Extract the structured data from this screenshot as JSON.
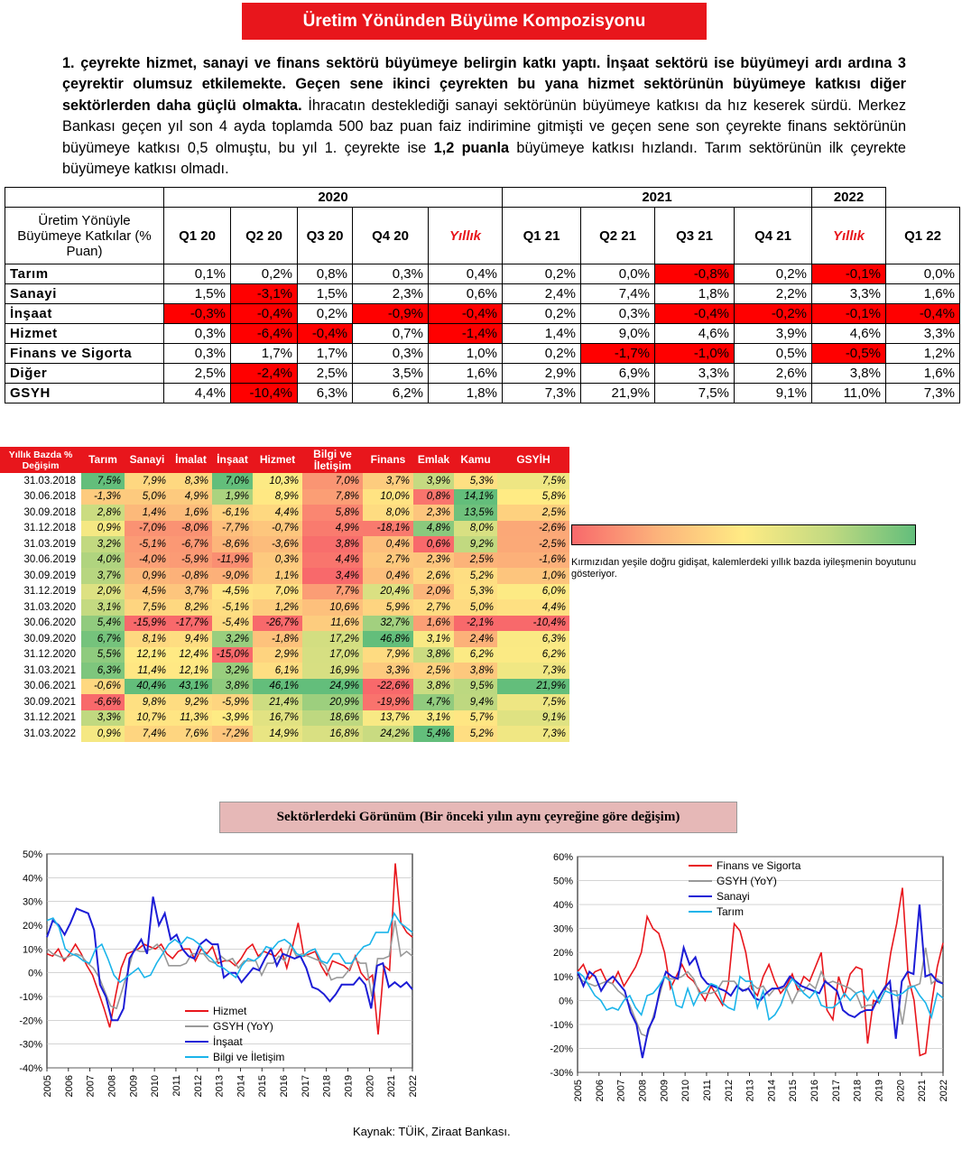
{
  "title": "Üretim Yönünden Büyüme Kompozisyonu",
  "paragraph": {
    "bold_1": "1. çeyrekte hizmet, sanayi ve finans sektörü büyümeye belirgin katkı yaptı. İnşaat sektörü ise büyümeyi ardı ardına 3 çeyrektir olumsuz etkilemekte. Geçen sene ikinci çeyrekten bu yana hizmet sektörünün büyümeye katkısı diğer sektörlerden daha güçlü olmakta.",
    "normal_1": " İhracatın desteklediği sanayi sektörünün büyümeye katkısı da hız keserek sürdü. Merkez Bankası geçen yıl son 4 ayda toplamda 500 baz puan faiz indirimine gitmişti ve geçen sene son çeyrekte finans sektörünün büyümeye katkısı 0,5 olmuştu, bu yıl 1. çeyrekte ise ",
    "bold_2": "1,2 puanla",
    "normal_2": " büyümeye katkısı hızlandı. Tarım sektörünün ilk çeyrekte büyümeye katkısı olmadı."
  },
  "contrib_table": {
    "years": [
      "2020",
      "2021",
      "2022"
    ],
    "row_header": "Üretim Yönüyle Büyümeye Katkılar (% Puan)",
    "columns": [
      "Q1 20",
      "Q2 20",
      "Q3 20",
      "Q4 20",
      "Yıllık",
      "Q1 21",
      "Q2 21",
      "Q3 21",
      "Q4 21",
      "Yıllık",
      "Q1 22"
    ],
    "rows": [
      {
        "label": "Tarım",
        "values": [
          "0,1%",
          "0,2%",
          "0,8%",
          "0,3%",
          "0,4%",
          "0,2%",
          "0,0%",
          "-0,8%",
          "0,2%",
          "-0,1%",
          "0,0%"
        ]
      },
      {
        "label": "Sanayi",
        "values": [
          "1,5%",
          "-3,1%",
          "1,5%",
          "2,3%",
          "0,6%",
          "2,4%",
          "7,4%",
          "1,8%",
          "2,2%",
          "3,3%",
          "1,6%"
        ]
      },
      {
        "label": "İnşaat",
        "values": [
          "-0,3%",
          "-0,4%",
          "0,2%",
          "-0,9%",
          "-0,4%",
          "0,2%",
          "0,3%",
          "-0,4%",
          "-0,2%",
          "-0,1%",
          "-0,4%"
        ]
      },
      {
        "label": "Hizmet",
        "values": [
          "0,3%",
          "-6,4%",
          "-0,4%",
          "0,7%",
          "-1,4%",
          "1,4%",
          "9,0%",
          "4,6%",
          "3,9%",
          "4,6%",
          "3,3%"
        ]
      },
      {
        "label": "Finans ve Sigorta",
        "values": [
          "0,3%",
          "1,7%",
          "1,7%",
          "0,3%",
          "1,0%",
          "0,2%",
          "-1,7%",
          "-1,0%",
          "0,5%",
          "-0,5%",
          "1,2%"
        ]
      },
      {
        "label": "Diğer",
        "values": [
          "2,5%",
          "-2,4%",
          "2,5%",
          "3,5%",
          "1,6%",
          "2,9%",
          "6,9%",
          "3,3%",
          "2,6%",
          "3,8%",
          "1,6%"
        ]
      },
      {
        "label": "GSYH",
        "values": [
          "4,4%",
          "-10,4%",
          "6,3%",
          "6,2%",
          "1,8%",
          "7,3%",
          "21,9%",
          "7,5%",
          "9,1%",
          "11,0%",
          "7,3%"
        ]
      }
    ]
  },
  "heatmap": {
    "corner": "Yıllık Bazda % Değişim",
    "columns": [
      "Tarım",
      "Sanayi",
      "İmalat",
      "İnşaat",
      "Hizmet",
      "Bilgi ve İletişim",
      "Finans",
      "Emlak",
      "Kamu",
      "GSYİH"
    ],
    "rows": [
      {
        "date": "31.03.2018",
        "values": [
          "7,5%",
          "7,9%",
          "8,3%",
          "7,0%",
          "10,3%",
          "7,0%",
          "3,7%",
          "3,9%",
          "5,3%",
          "7,5%"
        ]
      },
      {
        "date": "30.06.2018",
        "values": [
          "-1,3%",
          "5,0%",
          "4,9%",
          "1,9%",
          "8,9%",
          "7,8%",
          "10,0%",
          "0,8%",
          "14,1%",
          "5,8%"
        ]
      },
      {
        "date": "30.09.2018",
        "values": [
          "2,8%",
          "1,4%",
          "1,6%",
          "-6,1%",
          "4,4%",
          "5,8%",
          "8,0%",
          "2,3%",
          "13,5%",
          "2,5%"
        ]
      },
      {
        "date": "31.12.2018",
        "values": [
          "0,9%",
          "-7,0%",
          "-8,0%",
          "-7,7%",
          "-0,7%",
          "4,9%",
          "-18,1%",
          "4,8%",
          "8,0%",
          "-2,6%"
        ]
      },
      {
        "date": "31.03.2019",
        "values": [
          "3,2%",
          "-5,1%",
          "-6,7%",
          "-8,6%",
          "-3,6%",
          "3,8%",
          "0,4%",
          "0,6%",
          "9,2%",
          "-2,5%"
        ]
      },
      {
        "date": "30.06.2019",
        "values": [
          "4,0%",
          "-4,0%",
          "-5,9%",
          "-11,9%",
          "0,3%",
          "4,4%",
          "2,7%",
          "2,3%",
          "2,5%",
          "-1,6%"
        ]
      },
      {
        "date": "30.09.2019",
        "values": [
          "3,7%",
          "0,9%",
          "-0,8%",
          "-9,0%",
          "1,1%",
          "3,4%",
          "0,4%",
          "2,6%",
          "5,2%",
          "1,0%"
        ]
      },
      {
        "date": "31.12.2019",
        "values": [
          "2,0%",
          "4,5%",
          "3,7%",
          "-4,5%",
          "7,0%",
          "7,7%",
          "20,4%",
          "2,0%",
          "5,3%",
          "6,0%"
        ]
      },
      {
        "date": "31.03.2020",
        "values": [
          "3,1%",
          "7,5%",
          "8,2%",
          "-5,1%",
          "1,2%",
          "10,6%",
          "5,9%",
          "2,7%",
          "5,0%",
          "4,4%"
        ]
      },
      {
        "date": "30.06.2020",
        "values": [
          "5,4%",
          "-15,9%",
          "-17,7%",
          "-5,4%",
          "-26,7%",
          "11,6%",
          "32,7%",
          "1,6%",
          "-2,1%",
          "-10,4%"
        ]
      },
      {
        "date": "30.09.2020",
        "values": [
          "6,7%",
          "8,1%",
          "9,4%",
          "3,2%",
          "-1,8%",
          "17,2%",
          "46,8%",
          "3,1%",
          "2,4%",
          "6,3%"
        ]
      },
      {
        "date": "31.12.2020",
        "values": [
          "5,5%",
          "12,1%",
          "12,4%",
          "-15,0%",
          "2,9%",
          "17,0%",
          "7,9%",
          "3,8%",
          "6,2%",
          "6,2%"
        ]
      },
      {
        "date": "31.03.2021",
        "values": [
          "6,3%",
          "11,4%",
          "12,1%",
          "3,2%",
          "6,1%",
          "16,9%",
          "3,3%",
          "2,5%",
          "3,8%",
          "7,3%"
        ]
      },
      {
        "date": "30.06.2021",
        "values": [
          "-0,6%",
          "40,4%",
          "43,1%",
          "3,8%",
          "46,1%",
          "24,9%",
          "-22,6%",
          "3,8%",
          "9,5%",
          "21,9%"
        ]
      },
      {
        "date": "30.09.2021",
        "values": [
          "-6,6%",
          "9,8%",
          "9,2%",
          "-5,9%",
          "21,4%",
          "20,9%",
          "-19,9%",
          "4,7%",
          "9,4%",
          "7,5%"
        ]
      },
      {
        "date": "31.12.2021",
        "values": [
          "3,3%",
          "10,7%",
          "11,3%",
          "-3,9%",
          "16,7%",
          "18,6%",
          "13,7%",
          "3,1%",
          "5,7%",
          "9,1%"
        ]
      },
      {
        "date": "31.03.2022",
        "values": [
          "0,9%",
          "7,4%",
          "7,6%",
          "-7,2%",
          "14,9%",
          "16,8%",
          "24,2%",
          "5,4%",
          "5,2%",
          "7,3%"
        ]
      }
    ]
  },
  "scale_note": "Kırmızıdan yeşile doğru gidişat, kalemlerdeki yıllık bazda iyileşmenin boyutunu gösteriyor.",
  "section_title": "Sektörlerdeki Görünüm (Bir önceki yılın aynı çeyreğine göre değişim)",
  "source": "Kaynak: TÜİK, Ziraat Bankası.",
  "colors": {
    "red": "#e8161c",
    "gray": "#999999",
    "blue": "#1c1cd6",
    "cyan": "#1ab4ea"
  },
  "chart_data": [
    {
      "type": "line",
      "x_ticks": [
        "2005",
        "2006",
        "2007",
        "2008",
        "2009",
        "2010",
        "2011",
        "2012",
        "2013",
        "2014",
        "2015",
        "2016",
        "2017",
        "2018",
        "2019",
        "2020",
        "2021",
        "2022"
      ],
      "ylim": [
        -40,
        50
      ],
      "y_ticks": [
        "-40%",
        "-30%",
        "-20%",
        "-10%",
        "0%",
        "10%",
        "20%",
        "30%",
        "40%",
        "50%"
      ],
      "series": [
        {
          "name": "Hizmet",
          "color": "#e8161c",
          "values": [
            8,
            7,
            10,
            5,
            8,
            12,
            8,
            3,
            -1,
            -8,
            -15,
            -23,
            -10,
            2,
            8,
            9,
            10,
            12,
            11,
            10,
            12,
            8,
            6,
            9,
            10,
            10,
            5,
            10,
            8,
            11,
            4,
            5,
            5,
            3,
            6,
            10,
            12,
            7,
            9,
            8,
            7,
            10,
            2,
            11,
            21,
            7,
            8,
            9,
            3,
            -1,
            5,
            4,
            3,
            1,
            7,
            0,
            -3,
            -1,
            -26,
            3,
            1,
            46,
            21,
            17,
            15
          ]
        },
        {
          "name": "GSYH (YoY)",
          "color": "#999999",
          "values": [
            10,
            8,
            7,
            6,
            7,
            8,
            7,
            4,
            2,
            -2,
            -8,
            -14,
            -15,
            -7,
            1,
            10,
            9,
            9,
            10,
            12,
            9,
            3,
            3,
            3,
            4,
            8,
            8,
            8,
            5,
            4,
            7,
            5,
            6,
            2,
            5,
            5,
            5,
            -1,
            4,
            4,
            7,
            5,
            12,
            7,
            8,
            7,
            6,
            5,
            3,
            -3,
            -2,
            -2,
            1,
            6,
            4,
            4,
            -10,
            6,
            6,
            7,
            22,
            7,
            9,
            7
          ]
        },
        {
          "name": "İnşaat",
          "color": "#1c1cd6",
          "values": [
            15,
            22,
            20,
            16,
            21,
            27,
            26,
            25,
            18,
            -5,
            -10,
            -20,
            -20,
            -15,
            6,
            10,
            14,
            8,
            32,
            20,
            25,
            14,
            16,
            10,
            7,
            6,
            12,
            14,
            12,
            12,
            -2,
            0,
            0,
            -4,
            -1,
            2,
            1,
            6,
            10,
            3,
            8,
            7,
            6,
            7,
            2,
            -6,
            -7,
            -9,
            -12,
            -9,
            -5,
            -5,
            -5,
            -2,
            -5,
            -15,
            3,
            4,
            -6,
            -4,
            -6,
            -4,
            -7
          ]
        },
        {
          "name": "Bilgi ve İletişim",
          "color": "#1ab4ea",
          "values": [
            22,
            23,
            19,
            10,
            8,
            7,
            5,
            4,
            10,
            12,
            6,
            -1,
            -4,
            -2,
            0,
            2,
            -2,
            -1,
            4,
            8,
            12,
            14,
            12,
            15,
            14,
            12,
            8,
            6,
            3,
            2,
            0,
            -2,
            3,
            6,
            5,
            7,
            11,
            10,
            13,
            14,
            12,
            8,
            7,
            9,
            10,
            5,
            4,
            8,
            8,
            4,
            4,
            8,
            11,
            12,
            17,
            17,
            17,
            25,
            21,
            19,
            17
          ]
        }
      ],
      "legend": [
        "Hizmet",
        "GSYH (YoY)",
        "İnşaat",
        "Bilgi ve İletişim"
      ]
    },
    {
      "type": "line",
      "x_ticks": [
        "2005",
        "2006",
        "2007",
        "2008",
        "2009",
        "2010",
        "2011",
        "2012",
        "2013",
        "2014",
        "2015",
        "2016",
        "2017",
        "2018",
        "2019",
        "2020",
        "2021",
        "2022"
      ],
      "ylim": [
        -30,
        60
      ],
      "y_ticks": [
        "-30%",
        "-20%",
        "-10%",
        "0%",
        "10%",
        "20%",
        "30%",
        "40%",
        "50%",
        "60%"
      ],
      "series": [
        {
          "name": "Finans ve Sigorta",
          "color": "#e8161c",
          "values": [
            12,
            15,
            9,
            12,
            13,
            8,
            7,
            12,
            6,
            10,
            14,
            20,
            35,
            30,
            28,
            20,
            5,
            10,
            15,
            10,
            8,
            4,
            0,
            6,
            2,
            -2,
            7,
            32,
            29,
            20,
            5,
            2,
            10,
            15,
            8,
            3,
            6,
            11,
            4,
            10,
            8,
            14,
            20,
            -4,
            -8,
            10,
            2,
            11,
            14,
            13,
            -18,
            0,
            -1,
            4,
            20,
            32,
            47,
            10,
            0,
            -23,
            -22,
            -2,
            14,
            24
          ]
        },
        {
          "name": "GSYH (YoY)",
          "color": "#999999",
          "values": [
            10,
            8,
            7,
            6,
            7,
            8,
            7,
            4,
            2,
            -2,
            -8,
            -14,
            -15,
            -7,
            1,
            10,
            9,
            9,
            10,
            12,
            9,
            3,
            3,
            3,
            4,
            8,
            8,
            8,
            5,
            4,
            7,
            5,
            6,
            2,
            5,
            5,
            5,
            -1,
            4,
            4,
            7,
            5,
            12,
            7,
            8,
            7,
            6,
            5,
            3,
            -3,
            -2,
            -2,
            1,
            6,
            4,
            4,
            -10,
            6,
            6,
            7,
            22,
            7,
            9,
            7
          ]
        },
        {
          "name": "Sanayi",
          "color": "#1c1cd6",
          "values": [
            12,
            6,
            12,
            10,
            4,
            8,
            10,
            7,
            4,
            -5,
            -10,
            -24,
            -12,
            -7,
            5,
            12,
            10,
            9,
            22,
            15,
            18,
            10,
            7,
            6,
            5,
            4,
            2,
            6,
            4,
            5,
            1,
            0,
            3,
            5,
            5,
            6,
            10,
            8,
            6,
            5,
            4,
            3,
            8,
            6,
            4,
            -4,
            -6,
            -7,
            -5,
            -4,
            -4,
            1,
            5,
            8,
            -16,
            8,
            12,
            11,
            40,
            10,
            11,
            8,
            7
          ]
        },
        {
          "name": "Tarım",
          "color": "#1ab4ea",
          "values": [
            12,
            10,
            6,
            2,
            0,
            -4,
            -3,
            -4,
            0,
            2,
            -3,
            -6,
            2,
            3,
            6,
            10,
            8,
            -2,
            -3,
            5,
            -2,
            3,
            4,
            7,
            6,
            -1,
            -3,
            -4,
            10,
            8,
            8,
            -3,
            4,
            -8,
            -6,
            -2,
            5,
            9,
            6,
            3,
            1,
            4,
            -2,
            -3,
            -3,
            -1,
            3,
            0,
            3,
            4,
            0,
            4,
            -1,
            4,
            3,
            2,
            3,
            5,
            6,
            2,
            -1,
            -7,
            3,
            1
          ]
        }
      ],
      "legend": [
        "Finans ve Sigorta",
        "GSYH (YoY)",
        "Sanayi",
        "Tarım"
      ]
    }
  ]
}
